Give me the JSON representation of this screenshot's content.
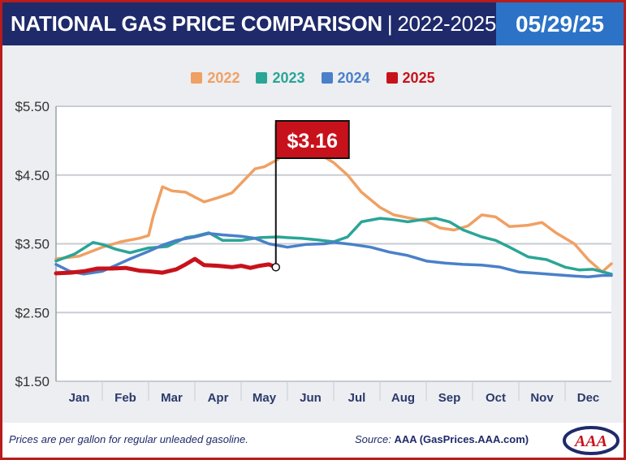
{
  "header": {
    "title": "NATIONAL GAS PRICE COMPARISON",
    "separator": "|",
    "years": "2022-2025",
    "date": "05/29/25"
  },
  "footer": {
    "note": "Prices are per gallon for regular unleaded gasoline.",
    "source_label": "Source:",
    "source_value": "AAA (GasPrices.AAA.com)"
  },
  "logo": {
    "text": "AAA",
    "icon": "aaa-logo-icon"
  },
  "colors": {
    "2022": "#f0a063",
    "2023": "#2aa596",
    "2024": "#4a80c9",
    "2025": "#c8121b",
    "header_bg": "#1f2a6b",
    "date_bg": "#2c73c7",
    "frame": "#b81c1c",
    "chart_bg": "#eceef1"
  },
  "chart_data": {
    "type": "line",
    "title": "NATIONAL GAS PRICE COMPARISON | 2022-2025",
    "xlabel": "",
    "ylabel": "",
    "x_unit": "month (1 = start of Jan, 13 = end of Dec)",
    "xlim": [
      1,
      13
    ],
    "ylim": [
      1.5,
      5.5
    ],
    "yticks": [
      "$5.50",
      "$4.50",
      "$3.50",
      "$2.50",
      "$1.50"
    ],
    "ytick_values": [
      5.5,
      4.5,
      3.5,
      2.5,
      1.5
    ],
    "categories": [
      "Jan",
      "Feb",
      "Mar",
      "Apr",
      "May",
      "Jun",
      "Jul",
      "Aug",
      "Sep",
      "Oct",
      "Nov",
      "Dec"
    ],
    "grid": true,
    "legend_position": "top-center",
    "series": [
      {
        "name": "2022",
        "color": "#f0a063",
        "x": [
          1.0,
          1.5,
          2.0,
          2.4,
          2.8,
          3.0,
          3.1,
          3.3,
          3.5,
          3.8,
          4.0,
          4.2,
          4.5,
          4.8,
          5.0,
          5.3,
          5.5,
          5.8,
          6.0,
          6.3,
          6.5,
          7.0,
          7.3,
          7.6,
          8.0,
          8.3,
          8.6,
          9.0,
          9.3,
          9.6,
          9.9,
          10.2,
          10.5,
          10.8,
          11.2,
          11.5,
          11.8,
          12.2,
          12.5,
          12.8,
          13.0
        ],
        "y": [
          3.28,
          3.32,
          3.45,
          3.53,
          3.58,
          3.62,
          3.9,
          4.33,
          4.27,
          4.25,
          4.18,
          4.11,
          4.17,
          4.24,
          4.38,
          4.59,
          4.62,
          4.73,
          4.98,
          5.0,
          4.88,
          4.68,
          4.5,
          4.25,
          4.03,
          3.92,
          3.88,
          3.83,
          3.73,
          3.7,
          3.76,
          3.92,
          3.89,
          3.75,
          3.77,
          3.81,
          3.66,
          3.5,
          3.27,
          3.09,
          3.21
        ]
      },
      {
        "name": "2023",
        "color": "#2aa596",
        "x": [
          1.0,
          1.4,
          1.8,
          2.0,
          2.3,
          2.6,
          3.0,
          3.4,
          3.8,
          4.0,
          4.3,
          4.6,
          5.0,
          5.4,
          5.8,
          6.0,
          6.3,
          6.6,
          7.0,
          7.3,
          7.6,
          8.0,
          8.3,
          8.6,
          8.9,
          9.2,
          9.5,
          9.8,
          10.2,
          10.5,
          10.8,
          11.2,
          11.6,
          12.0,
          12.3,
          12.6,
          13.0
        ],
        "y": [
          3.25,
          3.35,
          3.52,
          3.49,
          3.42,
          3.37,
          3.44,
          3.46,
          3.59,
          3.61,
          3.66,
          3.55,
          3.55,
          3.59,
          3.6,
          3.59,
          3.58,
          3.56,
          3.53,
          3.6,
          3.82,
          3.87,
          3.85,
          3.82,
          3.85,
          3.87,
          3.82,
          3.7,
          3.6,
          3.55,
          3.45,
          3.31,
          3.27,
          3.16,
          3.12,
          3.13,
          3.06
        ]
      },
      {
        "name": "2024",
        "color": "#4a80c9",
        "x": [
          1.0,
          1.3,
          1.6,
          2.0,
          2.3,
          2.6,
          3.0,
          3.3,
          3.6,
          4.0,
          4.3,
          4.6,
          5.0,
          5.3,
          5.6,
          6.0,
          6.4,
          6.8,
          7.0,
          7.4,
          7.8,
          8.2,
          8.6,
          9.0,
          9.4,
          9.8,
          10.2,
          10.6,
          11.0,
          11.4,
          11.8,
          12.2,
          12.5,
          12.8,
          13.0
        ],
        "y": [
          3.2,
          3.1,
          3.06,
          3.1,
          3.19,
          3.28,
          3.39,
          3.48,
          3.55,
          3.6,
          3.65,
          3.63,
          3.61,
          3.58,
          3.5,
          3.45,
          3.49,
          3.5,
          3.52,
          3.49,
          3.45,
          3.38,
          3.33,
          3.25,
          3.22,
          3.2,
          3.19,
          3.16,
          3.09,
          3.07,
          3.05,
          3.03,
          3.02,
          3.04,
          3.04
        ]
      },
      {
        "name": "2025",
        "color": "#c8121b",
        "x": [
          1.0,
          1.3,
          1.6,
          1.9,
          2.2,
          2.5,
          2.8,
          3.0,
          3.3,
          3.6,
          3.8,
          4.0,
          4.2,
          4.5,
          4.8,
          5.0,
          5.2,
          5.4,
          5.6,
          5.75
        ],
        "y": [
          3.07,
          3.08,
          3.1,
          3.14,
          3.14,
          3.15,
          3.11,
          3.1,
          3.08,
          3.13,
          3.2,
          3.28,
          3.19,
          3.18,
          3.16,
          3.18,
          3.15,
          3.18,
          3.2,
          3.16
        ]
      }
    ],
    "annotation": {
      "label": "$3.16",
      "series": "2025",
      "x": 5.75,
      "y": 3.16
    }
  }
}
